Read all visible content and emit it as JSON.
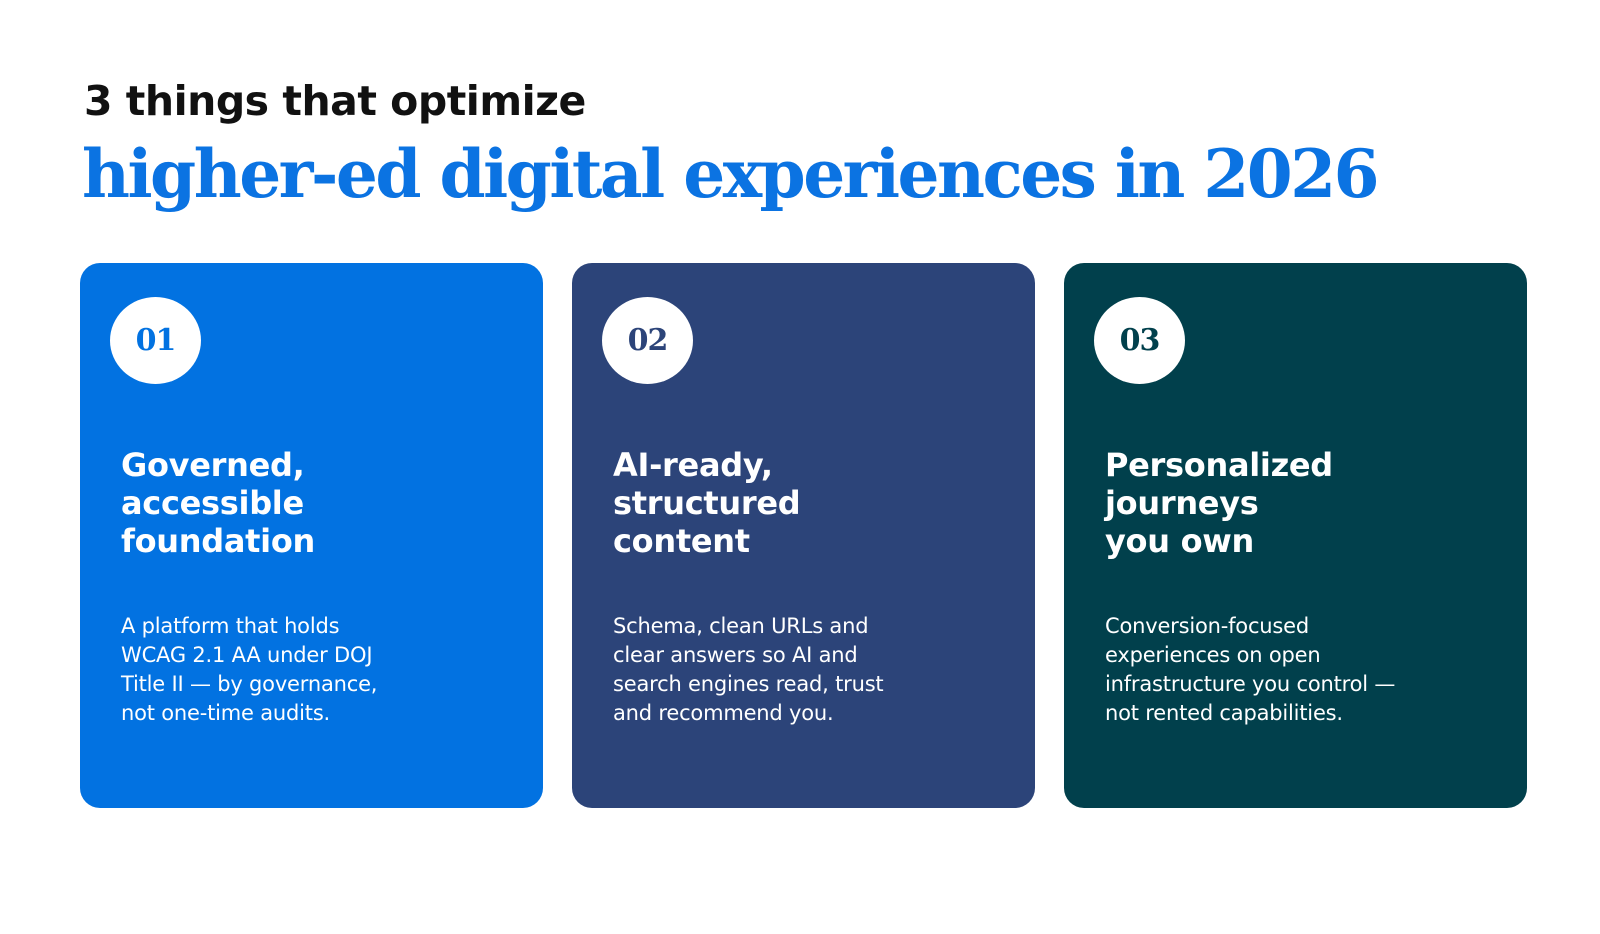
{
  "header": {
    "kicker": "3 things that optimize",
    "headline": "higher-ed digital experiences in 2026"
  },
  "colors": {
    "headline": "#0B73E2",
    "card_1": "#0272E1",
    "card_2": "#2C4479",
    "card_3": "#01404C",
    "text_on_card": "#FFFFFF"
  },
  "cards": [
    {
      "number": "01",
      "title": "Governed,\naccessible\nfoundation",
      "body": "A platform that holds\nWCAG 2.1 AA under DOJ\nTitle II — by governance,\nnot one-time audits."
    },
    {
      "number": "02",
      "title": "AI-ready,\nstructured\ncontent",
      "body": "Schema, clean URLs and\nclear answers so AI and\nsearch engines read, trust\nand recommend you."
    },
    {
      "number": "03",
      "title": "Personalized\njourneys\nyou own",
      "body": "Conversion-focused\nexperiences on open\ninfrastructure you control —\nnot rented capabilities."
    }
  ]
}
